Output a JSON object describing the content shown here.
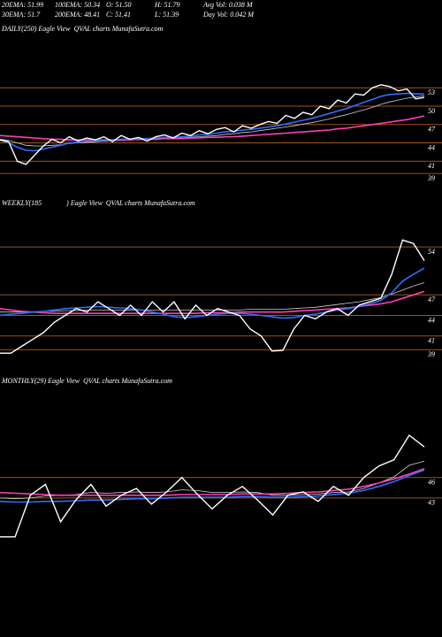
{
  "header": {
    "row1": [
      "20EMA: 51.99",
      "100EMA: 50.34",
      "O: 51.50",
      "H: 51.79",
      "Avg Vol: 0.038 M"
    ],
    "row2": [
      "30EMA: 51.7",
      "200EMA: 48.41",
      "C: 51.41",
      "L: 51.39",
      "Day Vol: 0.042 M"
    ]
  },
  "chart_data": [
    {
      "type": "line",
      "title": "DAILY(250) Eagle View  QVAL charts MunafaSutra.com",
      "ylim": [
        37,
        63
      ],
      "yticks": [
        53,
        50,
        47,
        44,
        41,
        39
      ],
      "grid": true,
      "series": [
        {
          "color": "#d0d0d0",
          "values": [
            44.6,
            44.4,
            44,
            43.6,
            43.5,
            43.5,
            43.6,
            43.7,
            43.9,
            44,
            44.1,
            44.2,
            44.3,
            44.4,
            44.4,
            44.5,
            44.5,
            44.6,
            44.6,
            44.7,
            44.8,
            44.8,
            44.9,
            45,
            45.1,
            45.2,
            45.4,
            45.5,
            45.7,
            45.8,
            46,
            46.2,
            46.4,
            46.6,
            46.8,
            47.1,
            47.3,
            47.6,
            47.9,
            48.3,
            48.6,
            49,
            49.4,
            49.8,
            50.3,
            50.7,
            51,
            51.3,
            51.5,
            51.7
          ]
        },
        {
          "color": "#ff3fb4",
          "values": [
            45.2,
            45.1,
            45,
            44.9,
            44.8,
            44.7,
            44.6,
            44.6,
            44.5,
            44.5,
            44.5,
            44.5,
            44.5,
            44.5,
            44.5,
            44.5,
            44.6,
            44.6,
            44.6,
            44.7,
            44.7,
            44.7,
            44.8,
            44.8,
            44.9,
            44.9,
            45,
            45,
            45.1,
            45.2,
            45.3,
            45.4,
            45.5,
            45.6,
            45.7,
            45.8,
            45.9,
            46,
            46.1,
            46.3,
            46.4,
            46.6,
            46.8,
            47,
            47.2,
            47.4,
            47.6,
            47.8,
            48.1,
            48.41
          ]
        },
        {
          "color": "#2f6fff",
          "values": [
            44.5,
            44,
            43.3,
            42.8,
            42.7,
            43,
            43.3,
            43.6,
            44,
            44.1,
            44.3,
            44.4,
            44.5,
            44.5,
            44.6,
            44.6,
            44.7,
            44.7,
            44.8,
            44.9,
            44.9,
            45,
            45.1,
            45.3,
            45.4,
            45.6,
            45.8,
            45.9,
            46.1,
            46.2,
            46.4,
            46.6,
            46.8,
            47.1,
            47.4,
            47.7,
            48,
            48.4,
            48.8,
            49.2,
            49.6,
            50.1,
            50.6,
            51.1,
            51.6,
            51.9,
            52,
            52.1,
            52,
            51.99
          ]
        },
        {
          "color": "#ffffff",
          "values": [
            44.5,
            44.2,
            41,
            40.5,
            42,
            43.5,
            44.6,
            44,
            45,
            44.3,
            44.8,
            44.5,
            45,
            44.2,
            45.2,
            44.6,
            44.9,
            44.3,
            45,
            45.3,
            44.8,
            45.6,
            45.2,
            46,
            45.5,
            46.2,
            46.5,
            45.8,
            46.8,
            46.4,
            47,
            47.5,
            47.2,
            48.5,
            48,
            49,
            48.6,
            50,
            49.6,
            51,
            50.5,
            52,
            51.8,
            53,
            53.5,
            53.2,
            52.5,
            52.8,
            51.2,
            51.41
          ]
        }
      ]
    },
    {
      "type": "line",
      "title": "WEEKLY(185              ) Eagle View  QVAL charts MunafaSutra.com",
      "ylim": [
        37.1,
        58.4
      ],
      "yticks": [
        54,
        47,
        44,
        41,
        39
      ],
      "grid": true,
      "series": [
        {
          "color": "#d0d0d0",
          "values": [
            44.5,
            44.5,
            44.5,
            44.5,
            44.6,
            44.6,
            44.7,
            44.7,
            44.8,
            44.8,
            44.8,
            44.8,
            44.8,
            44.8,
            44.8,
            44.8,
            44.8,
            44.8,
            44.8,
            44.8,
            44.8,
            44.8,
            44.8,
            44.9,
            44.9,
            44.9,
            44.9,
            45,
            45.1,
            45.2,
            45.4,
            45.6,
            45.8,
            46,
            46.3,
            46.6,
            47.1,
            47.7,
            48.3,
            48.8
          ]
        },
        {
          "color": "#ff3fb4",
          "values": [
            45,
            44.8,
            44.6,
            44.5,
            44.4,
            44.3,
            44.3,
            44.3,
            44.3,
            44.3,
            44.3,
            44.3,
            44.3,
            44.3,
            44.3,
            44.3,
            44.3,
            44.3,
            44.3,
            44.4,
            44.4,
            44.4,
            44.5,
            44.5,
            44.5,
            44.5,
            44.5,
            44.6,
            44.7,
            44.8,
            44.9,
            45,
            45.1,
            45.3,
            45.5,
            45.7,
            46,
            46.5,
            47,
            47.5
          ]
        },
        {
          "color": "#2f6fff",
          "values": [
            44,
            44.2,
            44.3,
            44.5,
            44.6,
            44.8,
            45,
            45.1,
            45.2,
            45.3,
            45.2,
            45.1,
            45,
            44.8,
            44.5,
            44.2,
            43.8,
            43.7,
            43.8,
            44,
            44.2,
            44.3,
            44.3,
            44.2,
            44,
            43.8,
            43.6,
            43.7,
            44,
            44.2,
            44.5,
            44.8,
            45,
            45.3,
            45.7,
            46.2,
            47.3,
            49,
            50,
            50.9
          ]
        },
        {
          "color": "#ffffff",
          "values": [
            38.5,
            38.5,
            39.5,
            40.5,
            41.5,
            43,
            44,
            45,
            44.5,
            46,
            45,
            44,
            45.5,
            44,
            46,
            44.5,
            46,
            43.5,
            45.5,
            44,
            45,
            44.5,
            44,
            42,
            41,
            38.8,
            38.9,
            42,
            44,
            43.5,
            44.5,
            45,
            44,
            45.5,
            46,
            46.5,
            50,
            55,
            54.5,
            52
          ]
        }
      ]
    },
    {
      "type": "line",
      "title": "MONTHLY(29) Eagle View  QVAL charts MunafaSutra.com",
      "ylim": [
        25.2,
        60.9
      ],
      "yticks": [
        46,
        43
      ],
      "grid": true,
      "series": [
        {
          "color": "#d0d0d0",
          "values": [
            43,
            42.9,
            43,
            43.3,
            43.4,
            43.5,
            43.8,
            43.7,
            43.8,
            43.9,
            43.8,
            43.9,
            44.2,
            44.1,
            43.8,
            43.8,
            43.9,
            43.8,
            43.4,
            43.4,
            43.5,
            43.6,
            43.8,
            43.9,
            44.4,
            45.2,
            46.1,
            47.8,
            48.4
          ]
        },
        {
          "color": "#ff3fb4",
          "values": [
            43.8,
            43.7,
            43.6,
            43.5,
            43.4,
            43.4,
            43.4,
            43.4,
            43.4,
            43.4,
            43.4,
            43.4,
            43.5,
            43.5,
            43.5,
            43.5,
            43.6,
            43.6,
            43.6,
            43.7,
            43.8,
            43.9,
            44.1,
            44.3,
            44.7,
            45.2,
            45.8,
            46.5,
            47.3
          ]
        },
        {
          "color": "#2f6fff",
          "values": [
            42.5,
            42.4,
            42.4,
            42.5,
            42.5,
            42.6,
            42.7,
            42.7,
            42.8,
            42.9,
            42.9,
            43,
            43.1,
            43.1,
            43.1,
            43.1,
            43.2,
            43.2,
            43.1,
            43.1,
            43.2,
            43.3,
            43.5,
            43.7,
            44.1,
            44.7,
            45.4,
            46.3,
            47.1
          ]
        },
        {
          "color": "#ffffff",
          "values": [
            37.3,
            37.3,
            43.4,
            45,
            39.5,
            42.7,
            45,
            41.8,
            43.4,
            44.4,
            42.1,
            43.9,
            46,
            43.6,
            41.4,
            43.4,
            44.7,
            42.7,
            40.5,
            43.4,
            43.9,
            42.5,
            44.7,
            43.4,
            46,
            47.7,
            48.6,
            52.2,
            50.5
          ]
        }
      ]
    }
  ]
}
